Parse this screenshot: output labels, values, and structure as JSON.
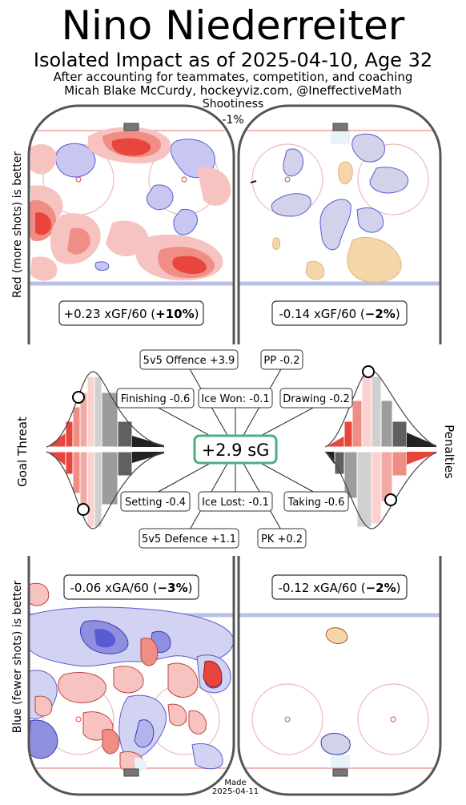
{
  "header": {
    "player_name": "Nino Niederreiter",
    "subtitle": "Isolated Impact as of 2025-04-10, Age 32",
    "context_line": "After accounting for teammates, competition, and coaching",
    "credit_line": "Micah Blake McCurdy, hockeyviz.com, @IneffectiveMath",
    "shootiness_label": "Shootiness",
    "shootiness_value": "-1%"
  },
  "axis_labels": {
    "top": "Red (more shots) is better",
    "bottom": "Blue (fewer shots) is better",
    "left_middle": "Goal Threat",
    "right_middle": "Penalties"
  },
  "footer": {
    "made_label": "Made",
    "made_date": "2025-04-11"
  },
  "colors": {
    "red": "#e8463c",
    "blue": "#5a5ad2",
    "tan": "#f5d6a8",
    "badge_border": "#4caf82",
    "rink_line": "#f2b8b8",
    "blue_line": "#b9c2e6"
  },
  "chart_data": {
    "type": "heatmap",
    "panels": [
      {
        "name": "five-on-five-offence",
        "stat_prefix": "+0.23 xGF/60 (",
        "stat_pct": "+10%",
        "stat_suffix": ")"
      },
      {
        "name": "powerplay-offence",
        "stat_prefix": "-0.14 xGF/60 (",
        "stat_pct": "−2%",
        "stat_suffix": ")"
      },
      {
        "name": "five-on-five-defence",
        "stat_prefix": "-0.06 xGA/60 (",
        "stat_pct": "−3%",
        "stat_suffix": ")"
      },
      {
        "name": "penalty-kill-defence",
        "stat_prefix": "-0.12 xGA/60 (",
        "stat_pct": "−2%",
        "stat_suffix": ")"
      }
    ],
    "total": "+2.9 sG",
    "components": {
      "offence_5v5": "5v5 Offence +3.9",
      "pp": "PP -0.2",
      "finishing": "Finishing -0.6",
      "ice_won": "Ice Won: -0.1",
      "drawing": "Drawing -0.2",
      "setting": "Setting -0.4",
      "ice_lost": "Ice Lost: -0.1",
      "taking": "Taking -0.6",
      "defence_5v5": "5v5 Defence +1.1",
      "pk": "PK +0.2"
    },
    "distributions": {
      "goal_threat_finishing_percentile": 0.27,
      "goal_threat_setting_percentile": 0.2,
      "penalties_drawing_percentile": 0.5,
      "penalties_taking_percentile": 0.81
    }
  }
}
